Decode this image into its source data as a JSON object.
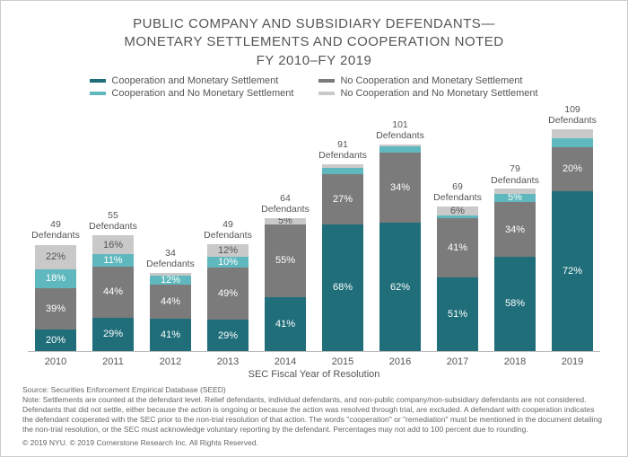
{
  "chart": {
    "type": "bar",
    "title_line1": "PUBLIC COMPANY AND SUBSIDIARY DEFENDANTS—",
    "title_line2": "MONETARY SETTLEMENTS AND COOPERATION NOTED",
    "title_line3": "FY 2010–FY 2019",
    "title_color": "#555555",
    "title_fontsize": 15,
    "x_axis_title": "SEC Fiscal Year of Resolution",
    "label_fontsize": 11,
    "background_color": "#ffffff",
    "border_color": "#cccccc",
    "bar_width": 0.74,
    "max_height_ratio": 1.0,
    "legend": [
      {
        "label": "Cooperation and Monetary Settlement",
        "color": "#1f6e79"
      },
      {
        "label": "No Cooperation and Monetary Settlement",
        "color": "#7b7b7b"
      },
      {
        "label": "Cooperation and No Monetary Settlement",
        "color": "#5fb8bd"
      },
      {
        "label": "No Cooperation and No Monetary Settlement",
        "color": "#c9c9c9"
      }
    ],
    "years": [
      "2010",
      "2011",
      "2012",
      "2013",
      "2014",
      "2015",
      "2016",
      "2017",
      "2018",
      "2019"
    ],
    "top_counts": [
      49,
      55,
      34,
      49,
      64,
      91,
      101,
      69,
      79,
      109
    ],
    "top_label_word": "Defendants",
    "segment_label_color": {
      "#1f6e79": "#ffffff",
      "#7b7b7b": "#ffffff",
      "#5fb8bd": "#ffffff",
      "#c9c9c9": "#555555"
    },
    "data": [
      {
        "height": 0.48,
        "segs": [
          {
            "pct": 20,
            "c": "#1f6e79"
          },
          {
            "pct": 39,
            "c": "#7b7b7b"
          },
          {
            "pct": 18,
            "c": "#5fb8bd"
          },
          {
            "pct": 22,
            "c": "#c9c9c9"
          }
        ]
      },
      {
        "height": 0.52,
        "segs": [
          {
            "pct": 29,
            "c": "#1f6e79"
          },
          {
            "pct": 44,
            "c": "#7b7b7b"
          },
          {
            "pct": 11,
            "c": "#5fb8bd"
          },
          {
            "pct": 16,
            "c": "#c9c9c9"
          }
        ]
      },
      {
        "height": 0.35,
        "segs": [
          {
            "pct": 41,
            "c": "#1f6e79"
          },
          {
            "pct": 44,
            "c": "#7b7b7b"
          },
          {
            "pct": 12,
            "c": "#5fb8bd"
          },
          {
            "pct": 3,
            "c": "#c9c9c9",
            "hide": true
          }
        ]
      },
      {
        "height": 0.48,
        "segs": [
          {
            "pct": 29,
            "c": "#1f6e79"
          },
          {
            "pct": 49,
            "c": "#7b7b7b"
          },
          {
            "pct": 10,
            "c": "#5fb8bd"
          },
          {
            "pct": 12,
            "c": "#c9c9c9"
          }
        ]
      },
      {
        "height": 0.6,
        "segs": [
          {
            "pct": 41,
            "c": "#1f6e79"
          },
          {
            "pct": 55,
            "c": "#7b7b7b"
          },
          {
            "pct": 0,
            "c": "#5fb8bd",
            "hide": true
          },
          {
            "pct": 5,
            "c": "#c9c9c9"
          }
        ]
      },
      {
        "height": 0.84,
        "segs": [
          {
            "pct": 68,
            "c": "#1f6e79"
          },
          {
            "pct": 27,
            "c": "#7b7b7b"
          },
          {
            "pct": 3,
            "c": "#5fb8bd",
            "hide": true
          },
          {
            "pct": 2,
            "c": "#c9c9c9",
            "hide": true
          }
        ]
      },
      {
        "height": 0.93,
        "segs": [
          {
            "pct": 62,
            "c": "#1f6e79"
          },
          {
            "pct": 34,
            "c": "#7b7b7b"
          },
          {
            "pct": 3,
            "c": "#5fb8bd",
            "hide": true
          },
          {
            "pct": 1,
            "c": "#c9c9c9",
            "hide": true
          }
        ]
      },
      {
        "height": 0.65,
        "segs": [
          {
            "pct": 51,
            "c": "#1f6e79"
          },
          {
            "pct": 41,
            "c": "#7b7b7b"
          },
          {
            "pct": 2,
            "c": "#5fb8bd",
            "hide": true
          },
          {
            "pct": 6,
            "c": "#c9c9c9"
          }
        ]
      },
      {
        "height": 0.73,
        "segs": [
          {
            "pct": 58,
            "c": "#1f6e79"
          },
          {
            "pct": 34,
            "c": "#7b7b7b"
          },
          {
            "pct": 5,
            "c": "#5fb8bd"
          },
          {
            "pct": 3,
            "c": "#c9c9c9",
            "hide": true
          }
        ]
      },
      {
        "height": 1.0,
        "segs": [
          {
            "pct": 72,
            "c": "#1f6e79"
          },
          {
            "pct": 20,
            "c": "#7b7b7b"
          },
          {
            "pct": 4,
            "c": "#5fb8bd",
            "hide": true
          },
          {
            "pct": 4,
            "c": "#c9c9c9",
            "hide": true
          }
        ]
      }
    ],
    "footnote": "Source: Securities Enforcement Empirical Database (SEED)\nNote: Settlements are counted at the defendant level. Relief defendants, individual defendants, and non-public company/non-subsidiary defendants are not considered. Defendants that did not settle, either because the action is ongoing or because the action was resolved through trial, are excluded. A defendant with cooperation indicates the defendant cooperated with the SEC prior to the non-trial resolution of that action. The words \"cooperation\" or \"remediation\" must be mentioned in the document detailing the non-trial resolution, or the SEC must acknowledge voluntary reporting by the defendant. Percentages may not add to 100 percent due to rounding.",
    "copyright": "© 2019 NYU. © 2019 Cornerstone Research Inc. All Rights Reserved."
  }
}
